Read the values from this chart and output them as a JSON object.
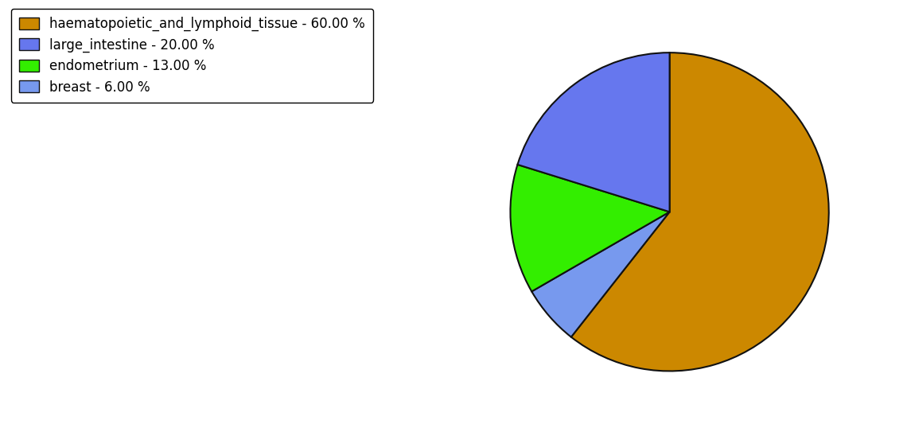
{
  "labels": [
    "haematopoietic_and_lymphoid_tissue",
    "breast",
    "endometrium",
    "large_intestine"
  ],
  "values": [
    60.0,
    6.0,
    13.0,
    20.0
  ],
  "colors": [
    "#CC8800",
    "#7799EE",
    "#33EE00",
    "#6677EE"
  ],
  "legend_labels": [
    "haematopoietic_and_lymphoid_tissue - 60.00 %",
    "large_intestine - 20.00 %",
    "endometrium - 13.00 %",
    "breast - 6.00 %"
  ],
  "legend_colors": [
    "#CC8800",
    "#6677EE",
    "#33EE00",
    "#7799EE"
  ],
  "startangle": 90,
  "figsize": [
    11.45,
    5.38
  ],
  "dpi": 100,
  "background_color": "#ffffff",
  "edge_color": "#111111",
  "edge_linewidth": 1.5,
  "legend_fontsize": 12
}
